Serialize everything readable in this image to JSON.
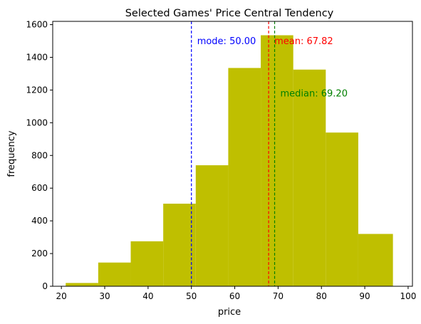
{
  "chart_data": {
    "type": "bar",
    "subtype": "histogram",
    "title": "Selected Games' Price Central Tendency",
    "xlabel": "price",
    "ylabel": "frequency",
    "xlim": [
      18,
      101
    ],
    "ylim": [
      0,
      1620
    ],
    "xticks": [
      20,
      30,
      40,
      50,
      60,
      70,
      80,
      90,
      100
    ],
    "yticks": [
      0,
      200,
      400,
      600,
      800,
      1000,
      1200,
      1400,
      1600
    ],
    "bins": [
      {
        "x0": 21.0,
        "x1": 28.5,
        "value": 20
      },
      {
        "x0": 28.5,
        "x1": 36.0,
        "value": 145
      },
      {
        "x0": 36.0,
        "x1": 43.5,
        "value": 275
      },
      {
        "x0": 43.5,
        "x1": 51.0,
        "value": 505
      },
      {
        "x0": 51.0,
        "x1": 58.5,
        "value": 740
      },
      {
        "x0": 58.5,
        "x1": 66.0,
        "value": 1335
      },
      {
        "x0": 66.0,
        "x1": 73.5,
        "value": 1535
      },
      {
        "x0": 73.5,
        "x1": 81.0,
        "value": 1325
      },
      {
        "x0": 81.0,
        "x1": 88.5,
        "value": 940
      },
      {
        "x0": 88.5,
        "x1": 96.5,
        "value": 320
      }
    ],
    "bar_color": "#bfbf00",
    "lines": [
      {
        "value": 50.0,
        "label": "mode: 50.00",
        "color": "#0000ff",
        "label_y": 1480
      },
      {
        "value": 67.82,
        "label": "mean: 67.82",
        "color": "#ff0000",
        "label_y": 1480
      },
      {
        "value": 69.2,
        "label": "median: 69.20",
        "color": "#008000",
        "label_y": 1160
      }
    ],
    "grid": false
  }
}
